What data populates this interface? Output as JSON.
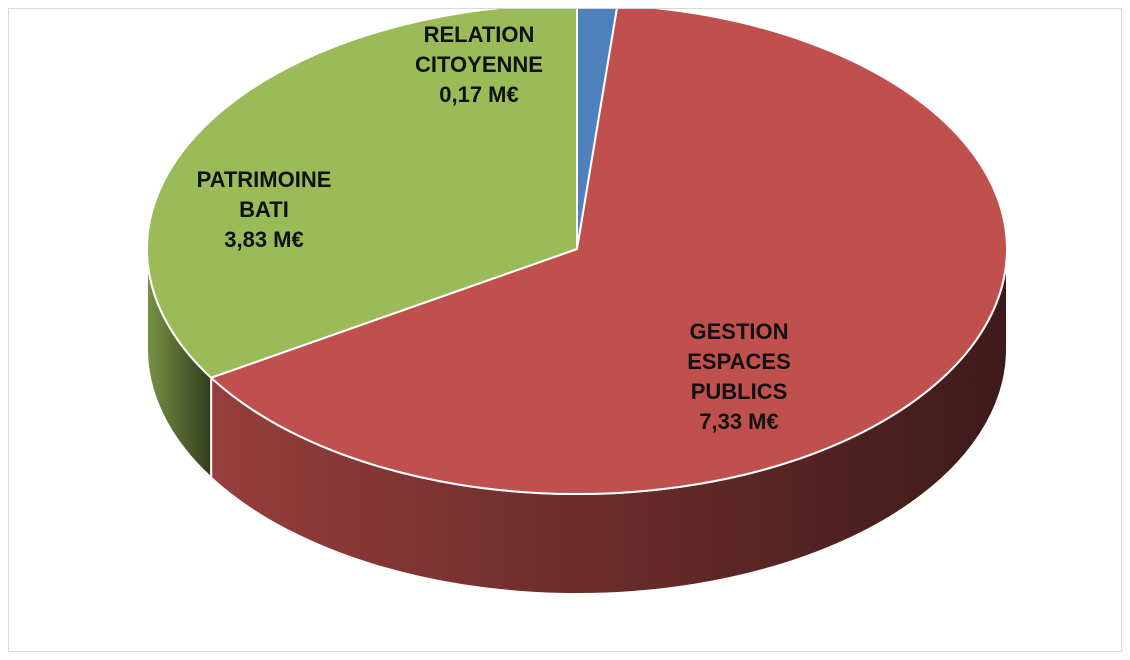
{
  "chart_data": {
    "type": "pie",
    "style": "3d",
    "title": "",
    "start_angle_deg": 0,
    "direction": "clockwise",
    "slices": [
      {
        "label_lines": [
          "RELATION",
          "CITOYENNE"
        ],
        "value_label": "0,17 M€",
        "value": 0.17,
        "color": "#4f81bd"
      },
      {
        "label_lines": [
          "GESTION",
          "ESPACES",
          "PUBLICS"
        ],
        "value_label": "7,33 M€",
        "value": 7.33,
        "color": "#c0504d"
      },
      {
        "label_lines": [
          "PATRIMOINE",
          "BATI"
        ],
        "value_label": "3,83 M€",
        "value": 3.83,
        "color": "#9bbb59"
      }
    ]
  }
}
